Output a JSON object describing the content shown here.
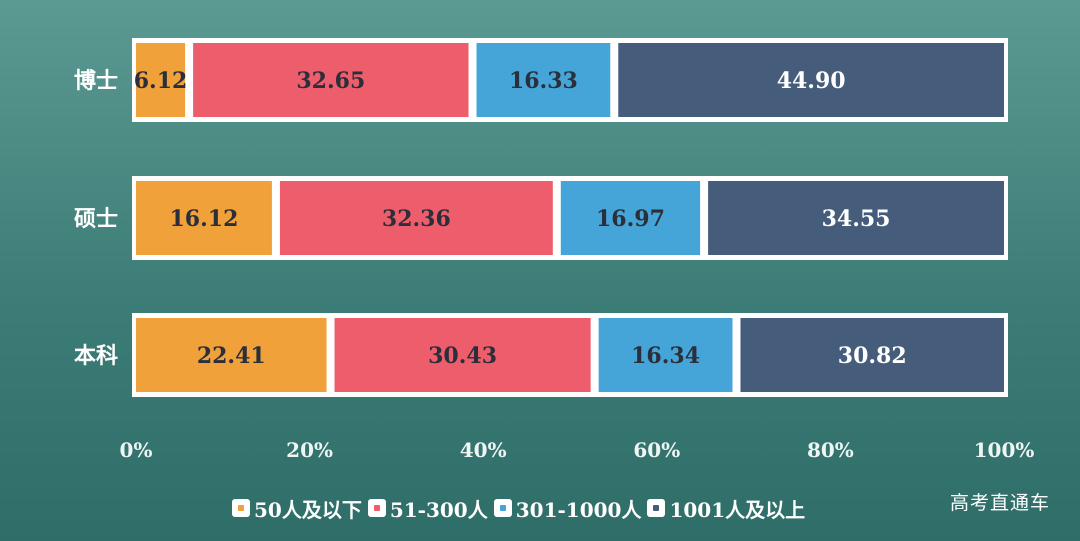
{
  "chart_data": {
    "type": "bar",
    "orientation": "horizontal",
    "stacked": true,
    "percent": true,
    "categories": [
      "博士",
      "硕士",
      "本科"
    ],
    "series": [
      {
        "name": "50人及以下",
        "color": "#f0a13a",
        "values": [
          6.12,
          16.12,
          22.41
        ]
      },
      {
        "name": "51-300人",
        "color": "#ee5d6c",
        "values": [
          32.65,
          32.36,
          30.43
        ]
      },
      {
        "name": "301-1000人",
        "color": "#45a4d8",
        "values": [
          16.33,
          16.97,
          16.34
        ]
      },
      {
        "name": "1001人及以上",
        "color": "#455d7a",
        "values": [
          44.9,
          34.55,
          30.82
        ]
      }
    ],
    "value_labels": [
      [
        "6.12",
        "32.65",
        "16.33",
        "44.90"
      ],
      [
        "16.12",
        "32.36",
        "16.97",
        "34.55"
      ],
      [
        "22.41",
        "30.43",
        "16.34",
        "30.82"
      ]
    ],
    "xlim": [
      0,
      100
    ],
    "xticks": [
      "0%",
      "20%",
      "40%",
      "60%",
      "80%",
      "100%"
    ],
    "grid": false,
    "legend_position": "bottom"
  },
  "colors": {
    "label_dark": "#2a2f3a",
    "label_light": "#ffffff",
    "bar_frame": "#ffffff"
  },
  "watermark": "高考直通车"
}
